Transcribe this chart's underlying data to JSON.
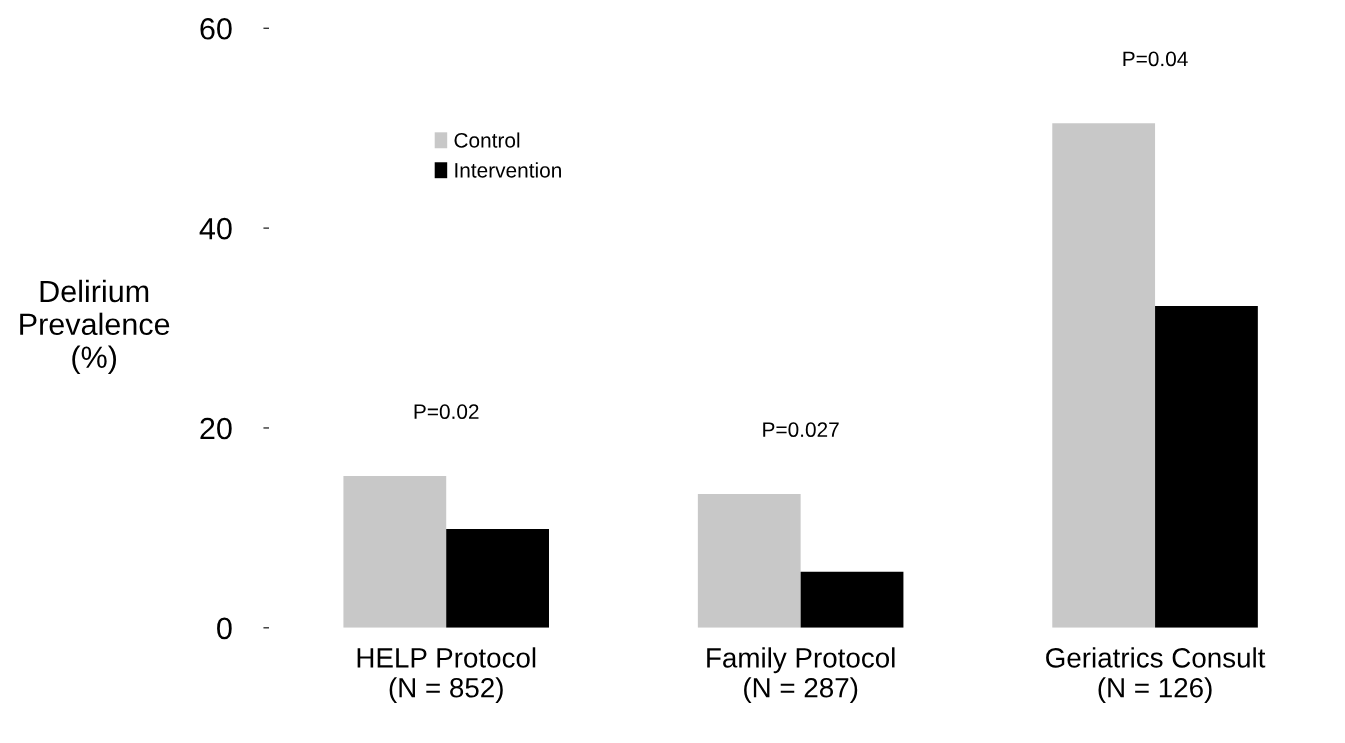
{
  "chart_data": {
    "type": "bar",
    "ylabel": "Delirium\nPrevalence\n(%)",
    "categories": [
      "HELP Protocol\n(N = 852)",
      "Family Protocol\n(N = 287)",
      "Geriatrics Consult\n(N = 126)"
    ],
    "series": [
      {
        "name": "Control",
        "color": "#c8c8c8",
        "values": [
          15.2,
          13.4,
          50.5
        ]
      },
      {
        "name": "Intervention",
        "color": "#000000",
        "values": [
          9.9,
          5.6,
          32.2
        ]
      }
    ],
    "ylim": [
      0,
      60
    ],
    "yticks": [
      0,
      20,
      40,
      60
    ],
    "grid": false,
    "legend": "top left",
    "annotations": [
      "P=0.02",
      "P=0.027",
      "P=0.04"
    ]
  }
}
